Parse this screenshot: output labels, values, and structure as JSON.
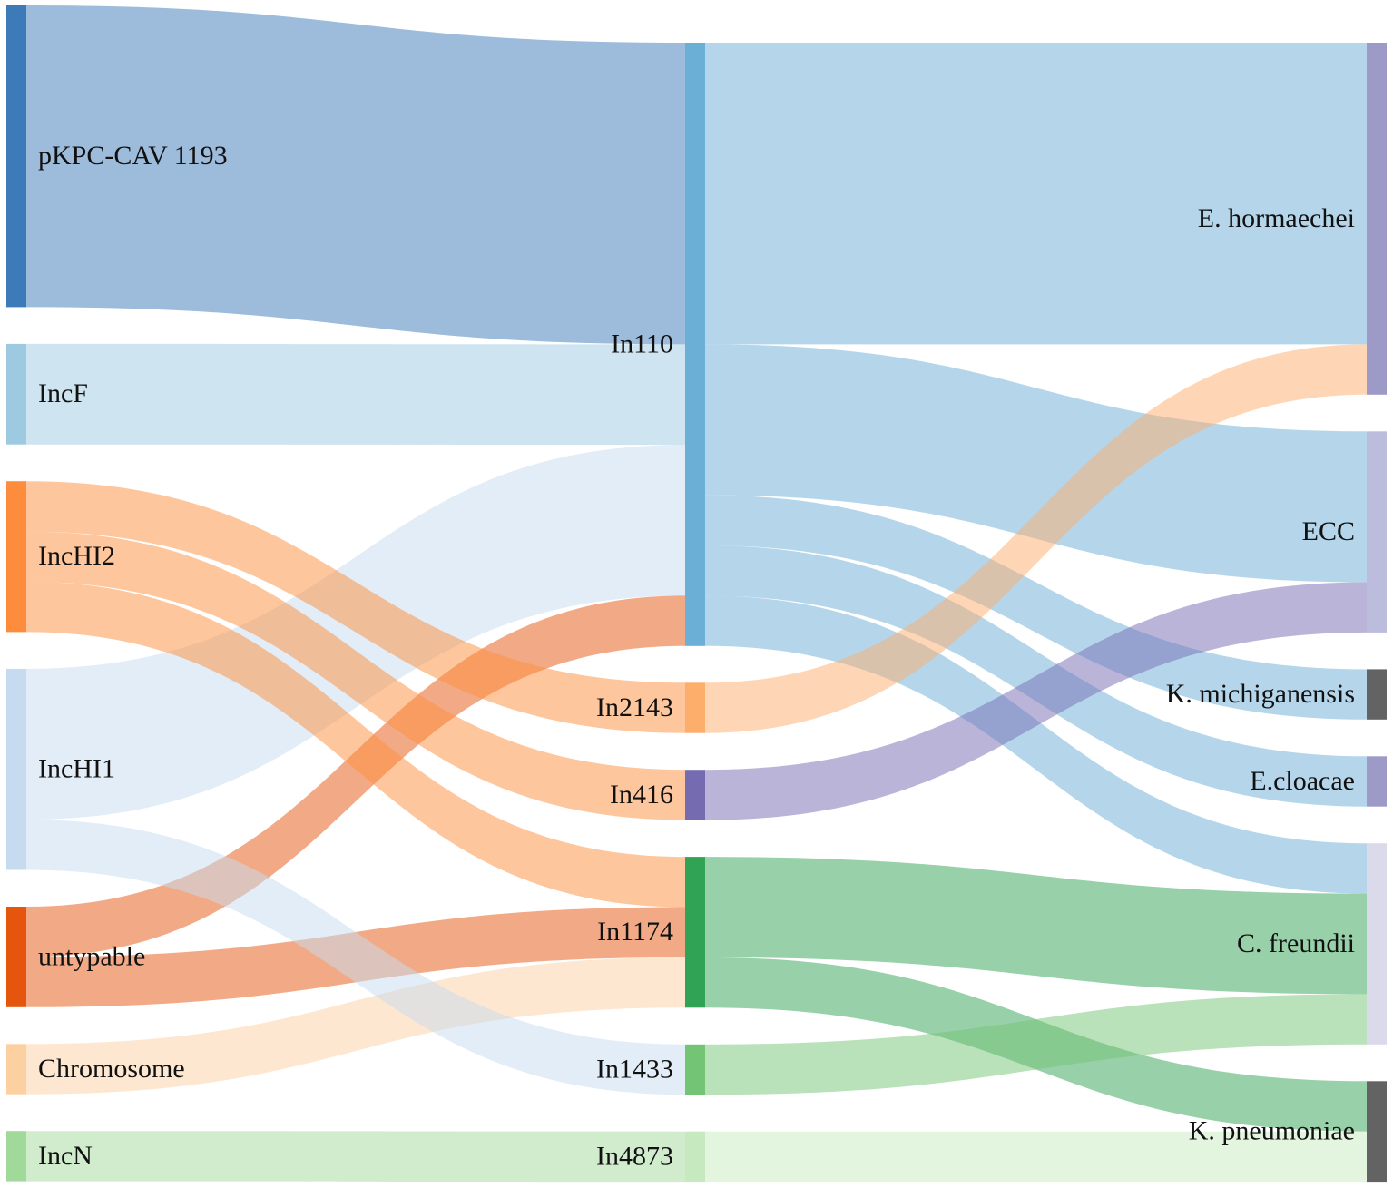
{
  "chart_data": {
    "type": "sankey",
    "title": "",
    "columns": [
      {
        "nodes": [
          {
            "id": "pKPC-CAV 1193",
            "label": "pKPC-CAV 1193",
            "color": "#3c7ab8"
          },
          {
            "id": "IncF",
            "label": "IncF",
            "color": "#9ecae1"
          },
          {
            "id": "IncHI2",
            "label": "IncHI2",
            "color": "#fd8d3c"
          },
          {
            "id": "IncHI1",
            "label": "IncHI1",
            "color": "#c6dbef"
          },
          {
            "id": "untypable",
            "label": "untypable",
            "color": "#e6550d"
          },
          {
            "id": "Chromosome",
            "label": "Chromosome",
            "color": "#fdd0a2"
          },
          {
            "id": "IncN",
            "label": "IncN",
            "color": "#a1d99b"
          }
        ]
      },
      {
        "nodes": [
          {
            "id": "In110",
            "label": "In110",
            "color": "#6baed6"
          },
          {
            "id": "In2143",
            "label": "In2143",
            "color": "#fdae6b"
          },
          {
            "id": "In416",
            "label": "In416",
            "color": "#756bb1"
          },
          {
            "id": "In1174",
            "label": "In1174",
            "color": "#31a354"
          },
          {
            "id": "In1433",
            "label": "In1433",
            "color": "#74c476"
          },
          {
            "id": "In4873",
            "label": "In4873",
            "color": "#c7e9c0"
          }
        ]
      },
      {
        "nodes": [
          {
            "id": "E. hormaechei",
            "label": "E. hormaechei",
            "color": "#9e9ac8"
          },
          {
            "id": "ECC",
            "label": "ECC",
            "color": "#bcbddc"
          },
          {
            "id": "K. michiganensis",
            "label": "K. michiganensis",
            "color": "#636363"
          },
          {
            "id": "E.cloacae",
            "label": "E.cloacae",
            "color": "#9e9ac8"
          },
          {
            "id": "C. freundii",
            "label": "C. freundii",
            "color": "#dadaeb"
          },
          {
            "id": "K. pneumoniae",
            "label": "K. pneumoniae",
            "color": "#636363"
          }
        ]
      }
    ],
    "links": [
      {
        "source": "pKPC-CAV 1193",
        "target": "In110",
        "value": 6,
        "color": "#3c7ab8"
      },
      {
        "source": "IncF",
        "target": "In110",
        "value": 2,
        "color": "#9ecae1"
      },
      {
        "source": "IncHI1",
        "target": "In110",
        "value": 3,
        "color": "#c6dbef"
      },
      {
        "source": "untypable",
        "target": "In110",
        "value": 1,
        "color": "#e6550d"
      },
      {
        "source": "IncHI2",
        "target": "In2143",
        "value": 1,
        "color": "#fd8d3c"
      },
      {
        "source": "IncHI2",
        "target": "In416",
        "value": 1,
        "color": "#fd8d3c"
      },
      {
        "source": "IncHI2",
        "target": "In1174",
        "value": 1,
        "color": "#fd8d3c"
      },
      {
        "source": "untypable",
        "target": "In1174",
        "value": 1,
        "color": "#e6550d"
      },
      {
        "source": "Chromosome",
        "target": "In1174",
        "value": 1,
        "color": "#fdd0a2"
      },
      {
        "source": "IncHI1",
        "target": "In1433",
        "value": 1,
        "color": "#c6dbef"
      },
      {
        "source": "IncN",
        "target": "In4873",
        "value": 1,
        "color": "#a1d99b"
      },
      {
        "source": "In110",
        "target": "E. hormaechei",
        "value": 6,
        "color": "#6baed6"
      },
      {
        "source": "In110",
        "target": "ECC",
        "value": 3,
        "color": "#6baed6"
      },
      {
        "source": "In110",
        "target": "K. michiganensis",
        "value": 1,
        "color": "#6baed6"
      },
      {
        "source": "In110",
        "target": "E.cloacae",
        "value": 1,
        "color": "#6baed6"
      },
      {
        "source": "In110",
        "target": "C. freundii",
        "value": 1,
        "color": "#6baed6"
      },
      {
        "source": "In2143",
        "target": "E. hormaechei",
        "value": 1,
        "color": "#fdae6b"
      },
      {
        "source": "In416",
        "target": "ECC",
        "value": 1,
        "color": "#756bb1"
      },
      {
        "source": "In1174",
        "target": "C. freundii",
        "value": 2,
        "color": "#31a354"
      },
      {
        "source": "In1174",
        "target": "K. pneumoniae",
        "value": 1,
        "color": "#31a354"
      },
      {
        "source": "In1433",
        "target": "C. freundii",
        "value": 1,
        "color": "#74c476"
      },
      {
        "source": "In4873",
        "target": "K. pneumoniae",
        "value": 1,
        "color": "#c7e9c0"
      }
    ]
  }
}
